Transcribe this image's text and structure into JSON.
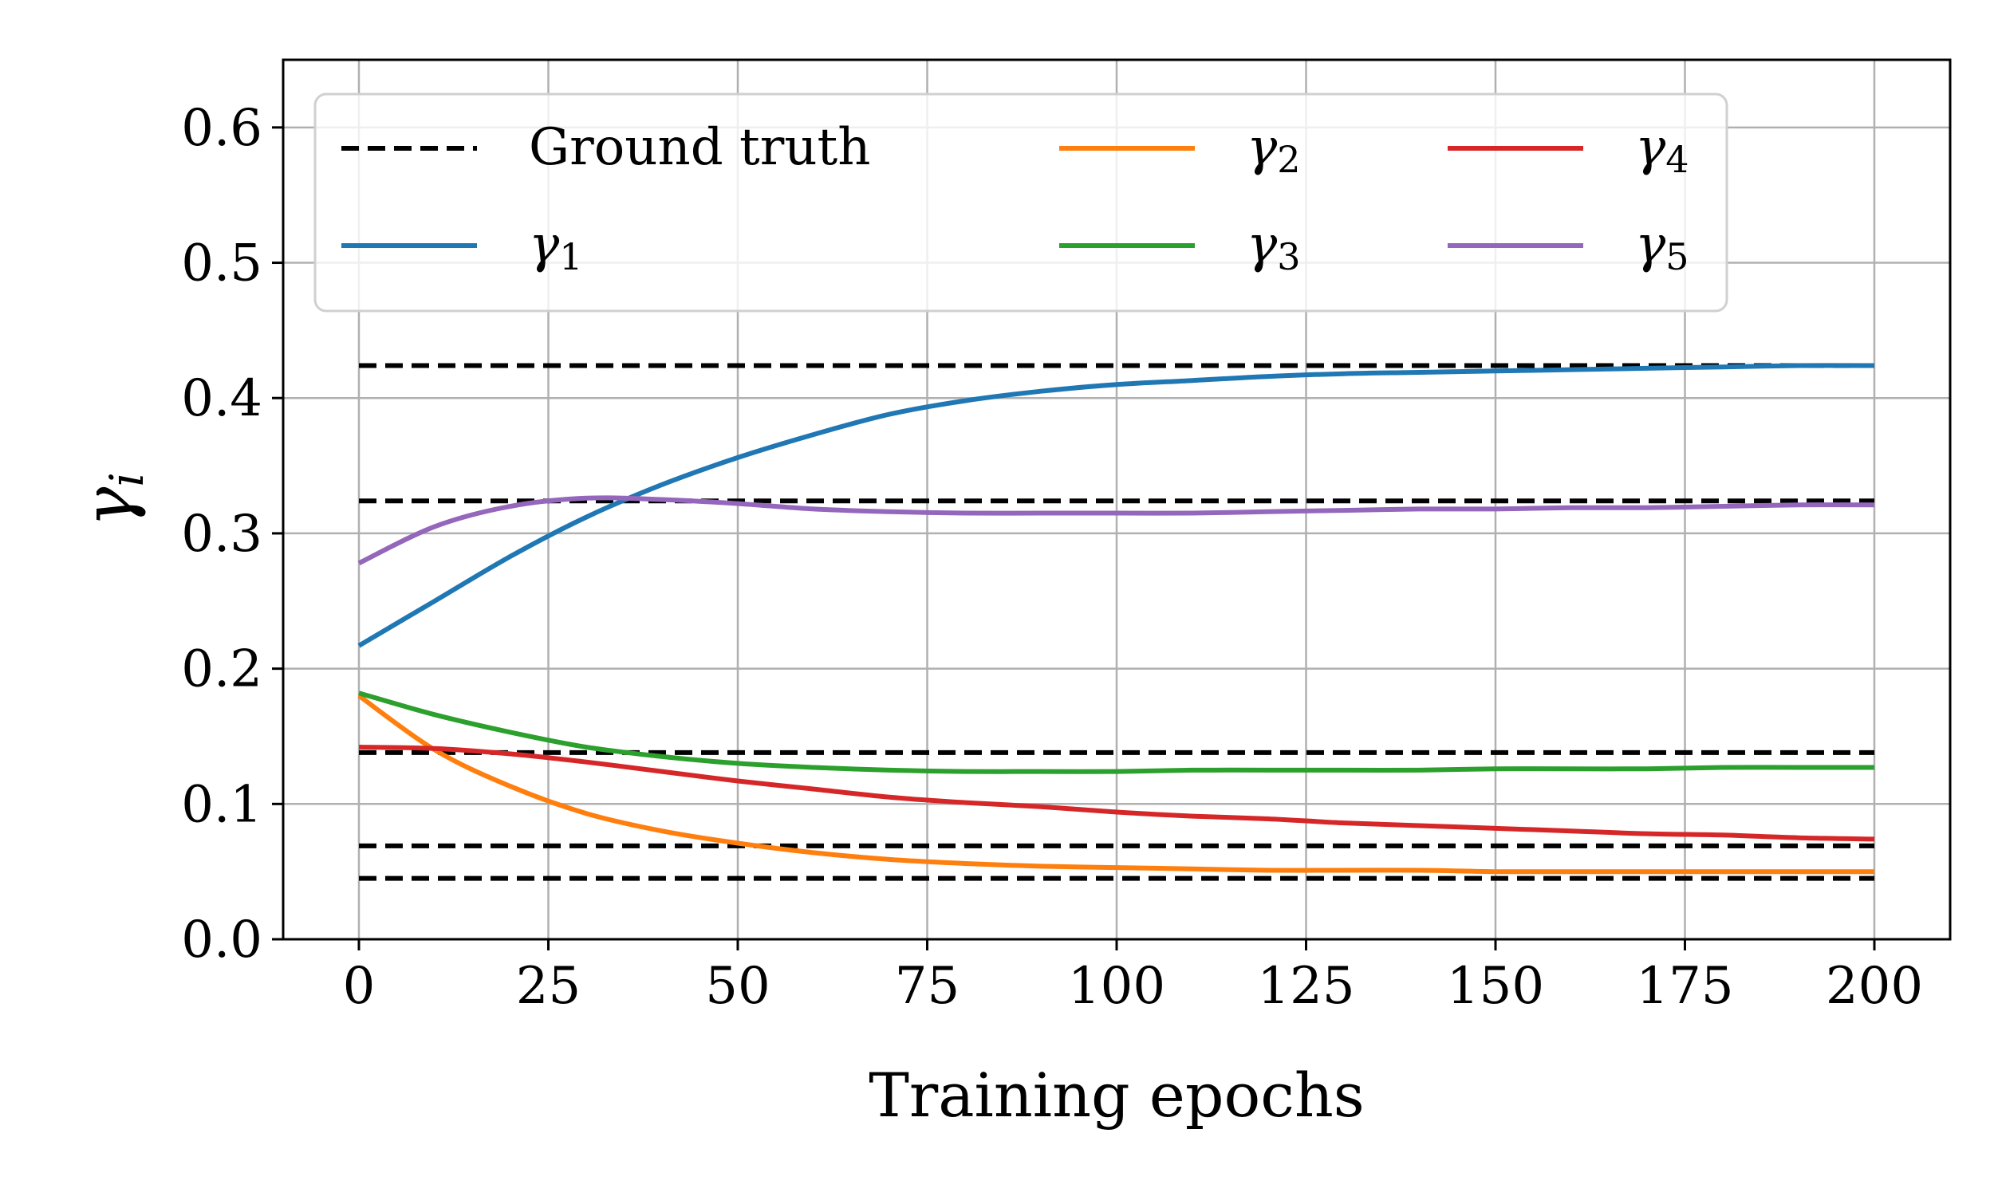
{
  "chart_data": {
    "type": "line",
    "title": "",
    "xlabel": "Training epochs",
    "ylabel": "γ",
    "ylabel_sub": "i",
    "xlim": [
      -10,
      210
    ],
    "ylim": [
      0.0,
      0.65
    ],
    "xticks": [
      0,
      25,
      50,
      75,
      100,
      125,
      150,
      175,
      200
    ],
    "yticks": [
      0.0,
      0.1,
      0.2,
      0.3,
      0.4,
      0.5,
      0.6
    ],
    "xtick_labels": [
      "0",
      "25",
      "50",
      "75",
      "100",
      "125",
      "150",
      "175",
      "200"
    ],
    "ytick_labels": [
      "0.0",
      "0.1",
      "0.2",
      "0.3",
      "0.4",
      "0.5",
      "0.6"
    ],
    "grid": true,
    "legend_position": "upper-left",
    "ground_truth": {
      "name": "Ground truth",
      "color": "#000000",
      "x_range": [
        0,
        200
      ],
      "values": [
        0.424,
        0.324,
        0.138,
        0.069,
        0.045
      ]
    },
    "x": [
      0,
      10,
      20,
      30,
      40,
      50,
      60,
      70,
      80,
      90,
      100,
      110,
      120,
      130,
      140,
      150,
      160,
      170,
      180,
      190,
      200
    ],
    "series": [
      {
        "name": "γ",
        "sub": "1",
        "color": "#1f77b4",
        "values": [
          0.217,
          0.25,
          0.283,
          0.312,
          0.336,
          0.356,
          0.373,
          0.388,
          0.398,
          0.405,
          0.41,
          0.413,
          0.416,
          0.418,
          0.419,
          0.42,
          0.421,
          0.422,
          0.423,
          0.424,
          0.424
        ]
      },
      {
        "name": "γ",
        "sub": "2",
        "color": "#ff7f0e",
        "values": [
          0.18,
          0.14,
          0.113,
          0.093,
          0.08,
          0.071,
          0.064,
          0.059,
          0.056,
          0.054,
          0.053,
          0.052,
          0.051,
          0.051,
          0.051,
          0.05,
          0.05,
          0.05,
          0.05,
          0.05,
          0.05
        ]
      },
      {
        "name": "γ",
        "sub": "3",
        "color": "#2ca02c",
        "values": [
          0.182,
          0.166,
          0.153,
          0.142,
          0.135,
          0.13,
          0.127,
          0.125,
          0.124,
          0.124,
          0.124,
          0.125,
          0.125,
          0.125,
          0.125,
          0.126,
          0.126,
          0.126,
          0.127,
          0.127,
          0.127
        ]
      },
      {
        "name": "γ",
        "sub": "4",
        "color": "#d62728",
        "values": [
          0.142,
          0.141,
          0.137,
          0.131,
          0.124,
          0.117,
          0.111,
          0.105,
          0.101,
          0.098,
          0.094,
          0.091,
          0.089,
          0.086,
          0.084,
          0.082,
          0.08,
          0.078,
          0.077,
          0.075,
          0.074
        ]
      },
      {
        "name": "γ",
        "sub": "5",
        "color": "#9467bd",
        "values": [
          0.278,
          0.305,
          0.32,
          0.326,
          0.325,
          0.322,
          0.318,
          0.316,
          0.315,
          0.315,
          0.315,
          0.315,
          0.316,
          0.317,
          0.318,
          0.318,
          0.319,
          0.319,
          0.32,
          0.321,
          0.321
        ]
      }
    ]
  }
}
